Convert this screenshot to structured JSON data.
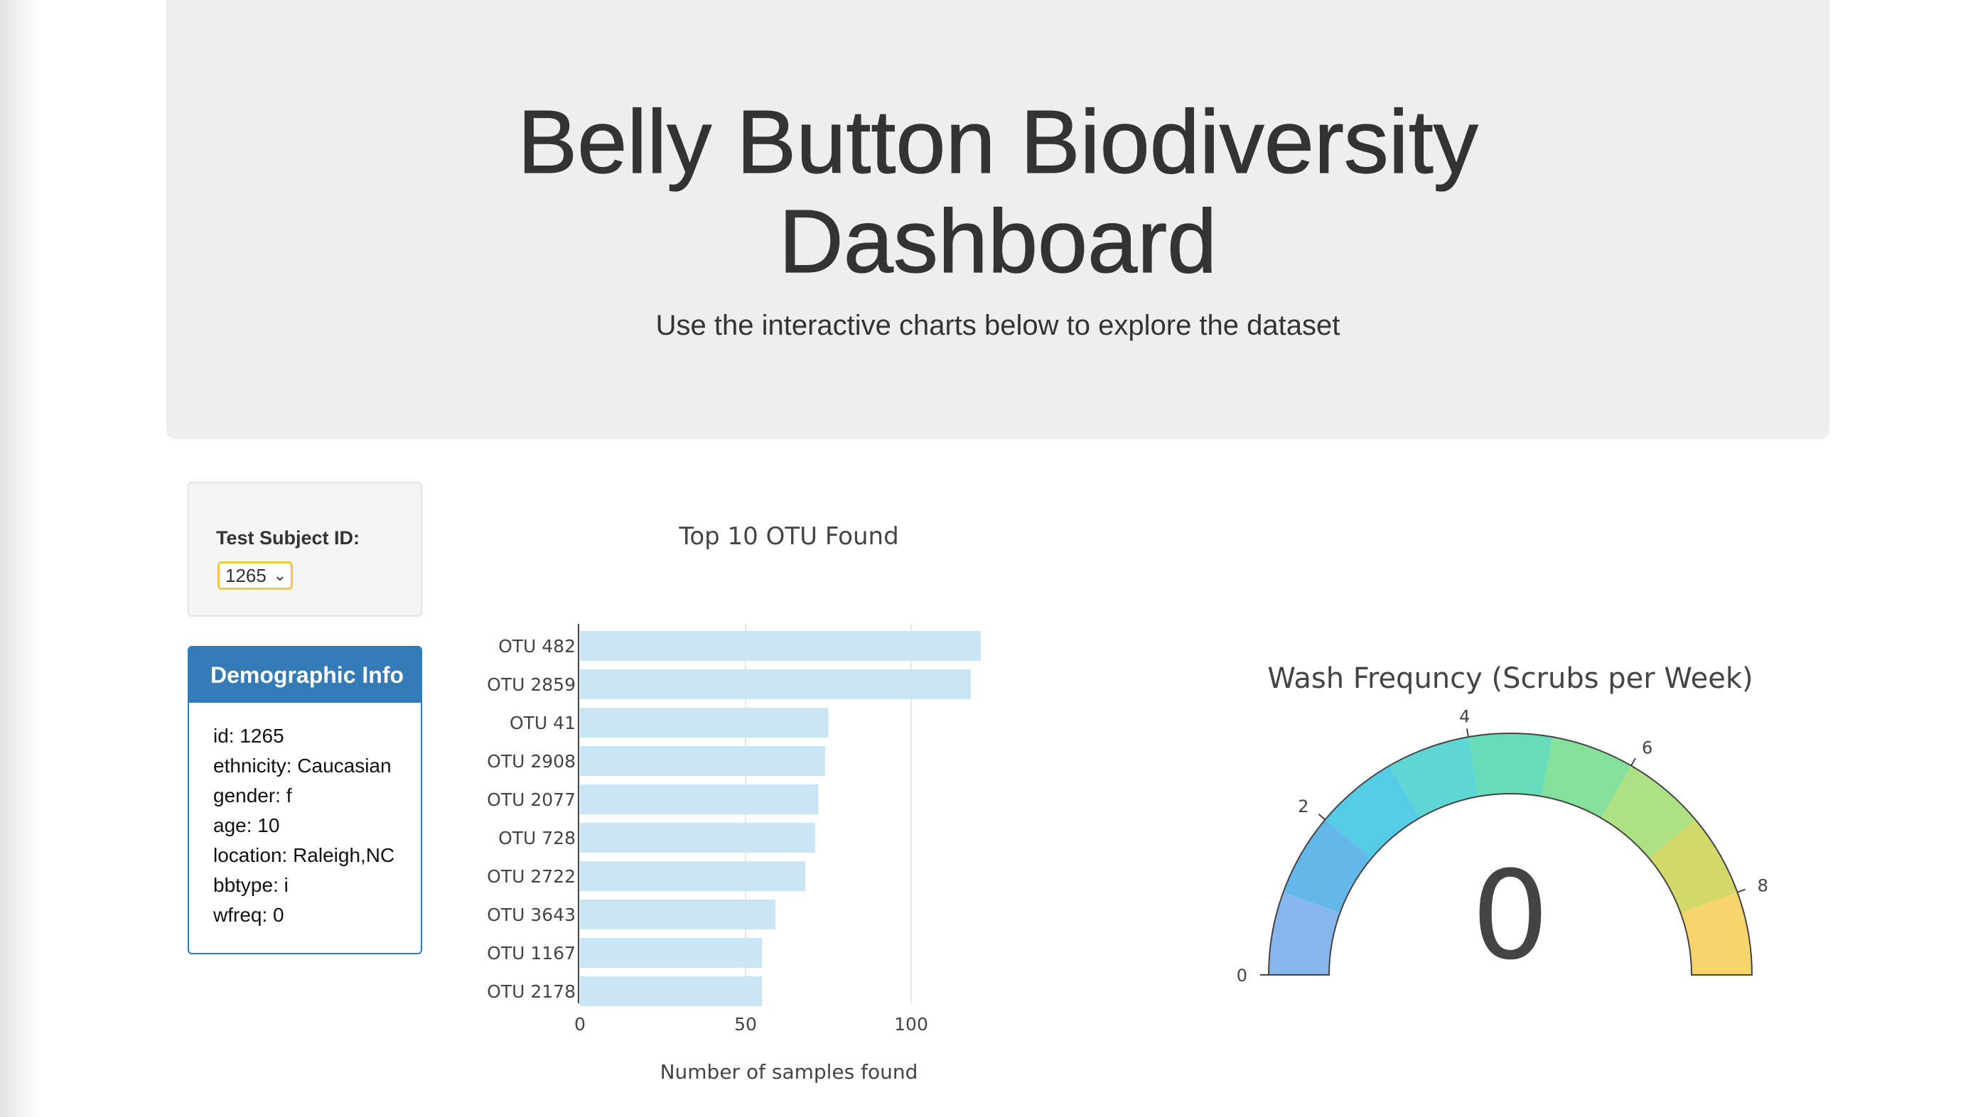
{
  "header": {
    "title_line1": "Belly Button Biodiversity",
    "title_line2": "Dashboard",
    "subtitle": "Use the interactive charts below to explore the dataset"
  },
  "selector": {
    "label": "Test Subject ID:",
    "value": "1265"
  },
  "demographics": {
    "heading": "Demographic Info",
    "lines": [
      "id: 1265",
      "ethnicity: Caucasian",
      "gender: f",
      "age: 10",
      "location: Raleigh,NC",
      "bbtype: i",
      "wfreq: 0"
    ]
  },
  "colors": {
    "panel_blue": "#337ab7",
    "bar_fill": "#c9e4f2",
    "select_border": "#f2c744"
  },
  "chart_data": [
    {
      "type": "bar",
      "orientation": "horizontal",
      "title": "Top 10 OTU Found",
      "xlabel": "Number of samples found",
      "ylabel": "",
      "categories": [
        "OTU 482",
        "OTU 2859",
        "OTU 41",
        "OTU 2908",
        "OTU 2077",
        "OTU 728",
        "OTU 2722",
        "OTU 3643",
        "OTU 1167",
        "OTU 2178"
      ],
      "values": [
        121,
        118,
        75,
        74,
        72,
        71,
        68,
        59,
        55,
        55
      ],
      "xticks": [
        0,
        50,
        100
      ],
      "xlim": [
        0,
        130
      ],
      "grid": true
    },
    {
      "type": "gauge",
      "title": "Wash Frequncy (Scrubs per Week)",
      "value": 0,
      "range": [
        0,
        9
      ],
      "ticks": [
        0,
        2,
        4,
        6,
        8
      ],
      "step_colors": [
        "#88b7ee",
        "#63b8ea",
        "#56cbe6",
        "#5dd6d4",
        "#67dcbb",
        "#85e09a",
        "#ade183",
        "#d2d869",
        "#f8d56b"
      ]
    }
  ]
}
